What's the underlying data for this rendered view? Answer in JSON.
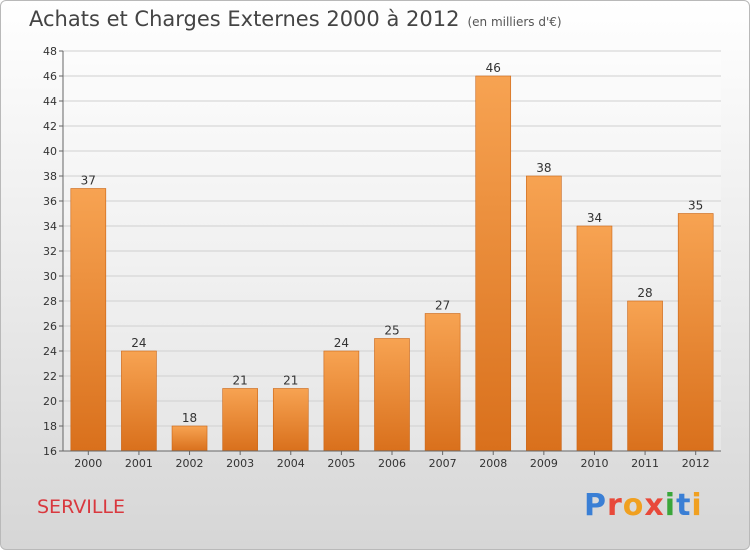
{
  "header": {
    "title": "Achats et Charges Externes 2000 à 2012",
    "subtitle": "(en milliers d'€)"
  },
  "footer": {
    "commune": "SERVILLE",
    "logo_text": "Proxiti"
  },
  "colors": {
    "bar_light": "#f7a352",
    "bar_dark": "#d9701c",
    "commune": "#d9383e"
  },
  "chart_data": {
    "type": "bar",
    "title": "Achats et Charges Externes 2000 à 2012",
    "subtitle": "(en milliers d'€)",
    "categories": [
      "2000",
      "2001",
      "2002",
      "2003",
      "2004",
      "2005",
      "2006",
      "2007",
      "2008",
      "2009",
      "2010",
      "2011",
      "2012"
    ],
    "values": [
      37,
      24,
      18,
      21,
      21,
      24,
      25,
      27,
      46,
      38,
      34,
      28,
      35
    ],
    "ylim": [
      16,
      48
    ],
    "yticks": [
      16,
      18,
      20,
      22,
      24,
      26,
      28,
      30,
      32,
      34,
      36,
      38,
      40,
      42,
      44,
      46,
      48
    ],
    "grid": true,
    "legend": "none"
  }
}
